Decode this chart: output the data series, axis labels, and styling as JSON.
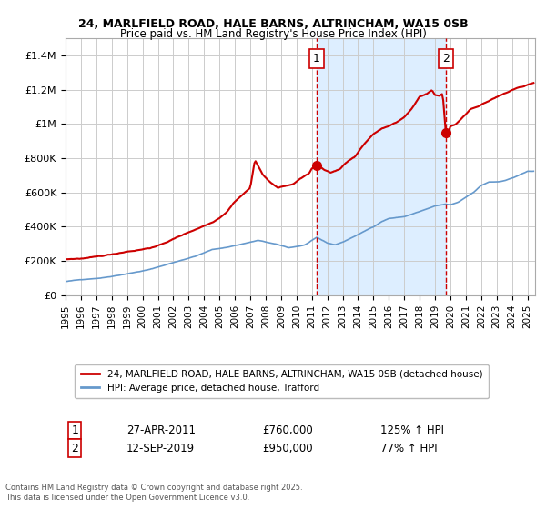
{
  "title_line1": "24, MARLFIELD ROAD, HALE BARNS, ALTRINCHAM, WA15 0SB",
  "title_line2": "Price paid vs. HM Land Registry's House Price Index (HPI)",
  "background_color": "#ffffff",
  "plot_bg_color": "#ffffff",
  "shaded_region_color": "#ddeeff",
  "grid_color": "#cccccc",
  "red_line_color": "#cc0000",
  "blue_line_color": "#6699cc",
  "dashed_line_color": "#cc0000",
  "marker_color": "#cc0000",
  "annotation1": {
    "label": "1",
    "date_x": 2011.32,
    "y": 760000,
    "date_str": "27-APR-2011",
    "price": "£760,000",
    "pct": "125% ↑ HPI"
  },
  "annotation2": {
    "label": "2",
    "date_x": 2019.71,
    "y": 950000,
    "date_str": "12-SEP-2019",
    "price": "£950,000",
    "pct": "77% ↑ HPI"
  },
  "legend_entry1": "24, MARLFIELD ROAD, HALE BARNS, ALTRINCHAM, WA15 0SB (detached house)",
  "legend_entry2": "HPI: Average price, detached house, Trafford",
  "footer": "Contains HM Land Registry data © Crown copyright and database right 2025.\nThis data is licensed under the Open Government Licence v3.0.",
  "ylim": [
    0,
    1500000
  ],
  "xlim": [
    1995.0,
    2025.5
  ],
  "yticks": [
    0,
    200000,
    400000,
    600000,
    800000,
    1000000,
    1200000,
    1400000
  ],
  "ytick_labels": [
    "£0",
    "£200K",
    "£400K",
    "£600K",
    "£800K",
    "£1M",
    "£1.2M",
    "£1.4M"
  ],
  "xticks": [
    1995,
    1996,
    1997,
    1998,
    1999,
    2000,
    2001,
    2002,
    2003,
    2004,
    2005,
    2006,
    2007,
    2008,
    2009,
    2010,
    2011,
    2012,
    2013,
    2014,
    2015,
    2016,
    2017,
    2018,
    2019,
    2020,
    2021,
    2022,
    2023,
    2024,
    2025
  ]
}
